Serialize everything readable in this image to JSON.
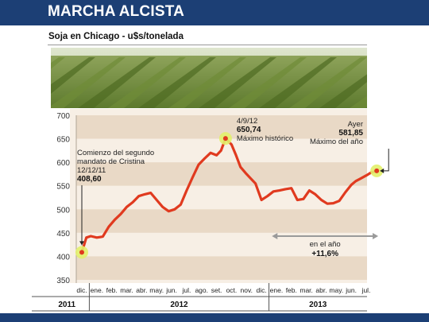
{
  "header": {
    "title": "MARCHA ALCISTA"
  },
  "subtitle": "Soja en Chicago - u$s/tonelada",
  "colors": {
    "header": "#1c3f75",
    "band_dark": "#e9d9c6",
    "band_light": "#f7efe5",
    "line": "#e03a1f",
    "highlight": "#e2f06a",
    "range_arrow": "#9a9a9a"
  },
  "chart_data": {
    "type": "line",
    "title": "",
    "xlabel": "",
    "ylabel": "u$s/tonelada",
    "ylim": [
      350,
      700
    ],
    "yticks": [
      "700",
      "650",
      "600",
      "550",
      "500",
      "450",
      "400",
      "350"
    ],
    "month_labels": [
      "dic.",
      "ene.",
      "feb.",
      "mar.",
      "abr.",
      "may.",
      "jun.",
      "jul.",
      "ago.",
      "set.",
      "oct.",
      "nov.",
      "dic.",
      "ene.",
      "feb.",
      "mar.",
      "abr.",
      "may.",
      "jun.",
      "jul."
    ],
    "year_labels": [
      "2011",
      "2012",
      "2013"
    ],
    "grid": false,
    "series": [
      {
        "x": [
          0,
          0.3,
          0.6,
          1.0,
          1.4,
          1.8,
          2.2,
          2.6,
          3.0,
          3.4,
          3.8,
          4.2,
          4.6,
          5.0,
          5.4,
          5.8,
          6.2,
          6.6,
          7.0,
          7.4,
          7.8,
          8.2,
          8.6,
          9.0,
          9.3,
          9.6,
          10.0,
          10.3,
          10.6,
          11.0,
          11.3,
          11.6,
          12.0,
          12.4,
          12.8,
          13.2,
          13.6,
          14.0,
          14.4,
          14.8,
          15.2,
          15.6,
          16.0,
          16.4,
          16.8,
          17.2,
          17.6,
          18.0,
          18.3,
          18.6,
          19.0,
          19.3,
          19.7
        ],
        "y": [
          408.6,
          440,
          443,
          440,
          442,
          463,
          478,
          490,
          505,
          515,
          528,
          532,
          535,
          520,
          505,
          496,
          500,
          510,
          540,
          568,
          595,
          608,
          620,
          615,
          625,
          650.74,
          638,
          615,
          590,
          575,
          565,
          555,
          520,
          528,
          538,
          540,
          543,
          545,
          520,
          522,
          540,
          532,
          520,
          512,
          513,
          518,
          536,
          552,
          560,
          565,
          572,
          578,
          581.85
        ]
      }
    ],
    "annotations": [
      {
        "x": 0,
        "y": 408.6,
        "lines": [
          "Comienzo del segundo",
          "mandato de Cristina",
          "12/12/11"
        ],
        "value": "408,60"
      },
      {
        "x": 9.6,
        "y": 650.74,
        "lines": [
          "4/9/12"
        ],
        "value": "650,74",
        "note": "Máximo histórico"
      },
      {
        "x": 19.7,
        "y": 581.85,
        "lines": [
          "Ayer"
        ],
        "value": "581,85",
        "note": "Máximo del año"
      }
    ],
    "range_label": {
      "text": "en el año",
      "value": "+11,6%"
    }
  }
}
